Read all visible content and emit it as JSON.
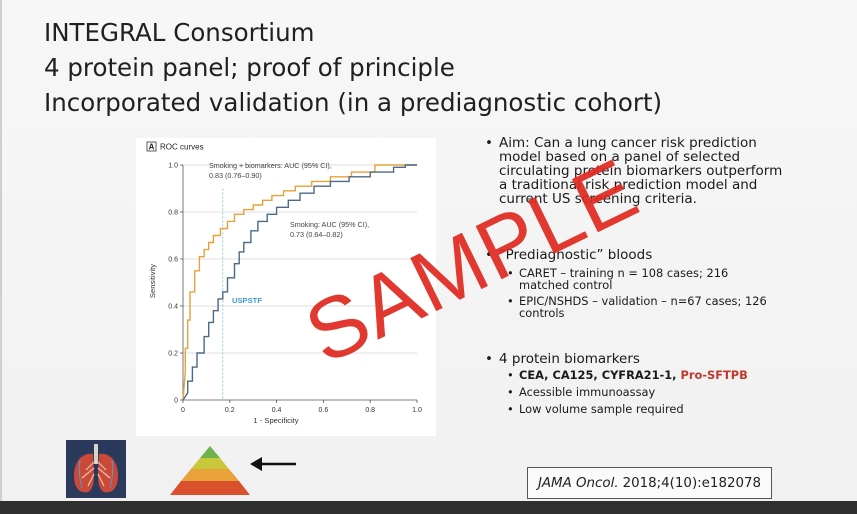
{
  "slide": {
    "title_lines": [
      "INTEGRAL Consortium",
      "4 protein panel; proof of principle",
      "Incorporated validation (in a prediagnostic cohort)"
    ]
  },
  "chart_data": {
    "type": "line",
    "panel_label": "A",
    "title": "ROC curves",
    "xlabel": "1 - Specificity",
    "ylabel": "Sensitivity",
    "xlim": [
      0,
      1.0
    ],
    "ylim": [
      0,
      1.0
    ],
    "x_ticks": [
      "0",
      "0.2",
      "0.4",
      "0.6",
      "0.8",
      "1.0"
    ],
    "y_ticks": [
      "0",
      "0.2",
      "0.4",
      "0.6",
      "0.8",
      "1.0"
    ],
    "grid": "horizontal",
    "series": [
      {
        "name": "Smoking + biomarkers: AUC (95% CI), 0.83 (0.76–0.90)",
        "color": "#e8a23a",
        "x": [
          0,
          0.01,
          0.01,
          0.02,
          0.02,
          0.03,
          0.03,
          0.05,
          0.05,
          0.07,
          0.07,
          0.09,
          0.09,
          0.11,
          0.11,
          0.13,
          0.13,
          0.16,
          0.16,
          0.19,
          0.19,
          0.22,
          0.22,
          0.26,
          0.26,
          0.3,
          0.3,
          0.34,
          0.34,
          0.38,
          0.38,
          0.43,
          0.43,
          0.48,
          0.48,
          0.55,
          0.55,
          0.63,
          0.63,
          0.72,
          0.72,
          0.82,
          0.82,
          1.0
        ],
        "y": [
          0,
          0.12,
          0.22,
          0.22,
          0.34,
          0.34,
          0.46,
          0.46,
          0.55,
          0.55,
          0.61,
          0.61,
          0.64,
          0.64,
          0.67,
          0.67,
          0.7,
          0.7,
          0.73,
          0.73,
          0.76,
          0.76,
          0.79,
          0.79,
          0.81,
          0.81,
          0.83,
          0.83,
          0.85,
          0.85,
          0.87,
          0.87,
          0.89,
          0.89,
          0.91,
          0.91,
          0.93,
          0.93,
          0.95,
          0.95,
          0.97,
          0.97,
          1.0,
          1.0
        ]
      },
      {
        "name": "Smoking: AUC (95% CI), 0.73 (0.64–0.82)",
        "color": "#4a6a85",
        "x": [
          0,
          0.02,
          0.02,
          0.04,
          0.04,
          0.06,
          0.06,
          0.09,
          0.09,
          0.11,
          0.11,
          0.13,
          0.13,
          0.15,
          0.15,
          0.17,
          0.17,
          0.19,
          0.19,
          0.22,
          0.22,
          0.24,
          0.24,
          0.26,
          0.26,
          0.29,
          0.29,
          0.32,
          0.32,
          0.36,
          0.36,
          0.4,
          0.4,
          0.45,
          0.45,
          0.5,
          0.5,
          0.56,
          0.56,
          0.63,
          0.63,
          0.71,
          0.71,
          0.8,
          0.8,
          0.9,
          0.9,
          0.95,
          0.95,
          1.0
        ],
        "y": [
          0,
          0.03,
          0.08,
          0.08,
          0.14,
          0.14,
          0.2,
          0.2,
          0.27,
          0.27,
          0.33,
          0.33,
          0.38,
          0.38,
          0.43,
          0.43,
          0.46,
          0.46,
          0.52,
          0.52,
          0.58,
          0.58,
          0.63,
          0.63,
          0.67,
          0.67,
          0.72,
          0.72,
          0.76,
          0.76,
          0.79,
          0.79,
          0.82,
          0.82,
          0.85,
          0.85,
          0.88,
          0.88,
          0.91,
          0.91,
          0.93,
          0.93,
          0.95,
          0.95,
          0.97,
          0.97,
          0.99,
          0.99,
          1.0,
          1.0
        ]
      }
    ],
    "annotations": [
      {
        "text": "Smoking + biomarkers: AUC (95% CI),",
        "line2": "0.83 (0.76–0.90)"
      },
      {
        "text": "Smoking: AUC (95% CI),",
        "line2": "0.73 (0.64–0.82)"
      },
      {
        "text": "USPSTF",
        "color": "#3a9ad9"
      }
    ],
    "reference_line_x": 0.17
  },
  "bullets": {
    "aim": "Aim:  Can a lung cancer risk prediction model based on a panel of selected circulating protein biomarkers outperform a traditional risk prediction model and current US screening criteria.",
    "bloods_title": "“Prediagnostic” bloods",
    "caret": "CARET – training n = 108 cases; 216 matched control",
    "epic": "EPIC/NSHDS – validation – n=67 cases; 126 controls",
    "biomarkers_title": "4 protein biomarkers",
    "biomarkers_list": "CEA, CA125, CYFRA21-1, ",
    "biomarker_highlight": "Pro-SFTPB",
    "immunoassay": "Acessible immunoassay",
    "volume": "Low volume sample required"
  },
  "citation": {
    "journal": "JAMA Oncol.",
    "reference": "2018;4(10):e182078"
  },
  "watermark": "SAMPLE",
  "icons": {
    "lungs": "lungs-illustration",
    "pyramid": "evidence-pyramid",
    "arrow": "arrow-left-icon"
  }
}
